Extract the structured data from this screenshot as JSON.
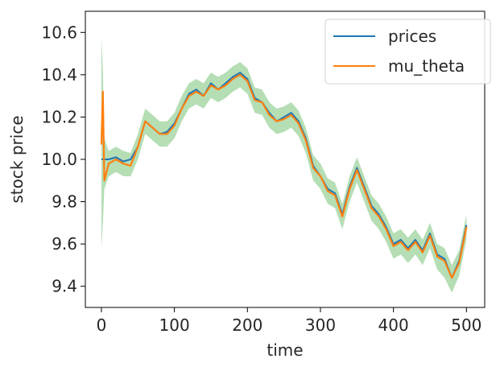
{
  "chart_data": {
    "type": "line",
    "title": "",
    "xlabel": "time",
    "ylabel": "stock price",
    "xlim": [
      -22,
      525
    ],
    "ylim": [
      9.3,
      10.7
    ],
    "xticks": [
      0,
      100,
      200,
      300,
      400,
      500
    ],
    "xtick_labels": [
      "0",
      "100",
      "200",
      "300",
      "400",
      "500"
    ],
    "yticks": [
      9.4,
      9.6,
      9.8,
      10.0,
      10.2,
      10.4,
      10.6
    ],
    "ytick_labels": [
      "9.4",
      "9.6",
      "9.8",
      "10.0",
      "10.2",
      "10.4",
      "10.6"
    ],
    "grid": false,
    "legend_position": "top-right",
    "series": [
      {
        "name": "prices",
        "color": "#1f77b4",
        "x": [
          0,
          10,
          20,
          30,
          40,
          50,
          60,
          70,
          80,
          90,
          100,
          110,
          120,
          130,
          140,
          150,
          160,
          170,
          180,
          190,
          200,
          210,
          220,
          230,
          240,
          250,
          260,
          270,
          280,
          290,
          300,
          310,
          320,
          330,
          340,
          350,
          360,
          370,
          380,
          390,
          400,
          410,
          420,
          430,
          440,
          450,
          460,
          470,
          480,
          490,
          500
        ],
        "y": [
          10.0,
          10.0,
          10.01,
          9.99,
          10.0,
          10.06,
          10.18,
          10.15,
          10.12,
          10.13,
          10.17,
          10.24,
          10.31,
          10.33,
          10.3,
          10.36,
          10.33,
          10.36,
          10.39,
          10.41,
          10.38,
          10.29,
          10.27,
          10.22,
          10.18,
          10.2,
          10.22,
          10.18,
          10.1,
          9.97,
          9.92,
          9.86,
          9.84,
          9.74,
          9.87,
          9.96,
          9.87,
          9.78,
          9.74,
          9.68,
          9.6,
          9.62,
          9.58,
          9.62,
          9.57,
          9.65,
          9.55,
          9.53,
          9.44,
          9.52,
          9.69
        ]
      },
      {
        "name": "mu_theta",
        "color": "#ff7f0e",
        "x": [
          0,
          2,
          4,
          10,
          20,
          30,
          40,
          50,
          60,
          70,
          80,
          90,
          100,
          110,
          120,
          130,
          140,
          150,
          160,
          170,
          180,
          190,
          200,
          210,
          220,
          230,
          240,
          250,
          260,
          270,
          280,
          290,
          300,
          310,
          320,
          330,
          340,
          350,
          360,
          370,
          380,
          390,
          400,
          410,
          420,
          430,
          440,
          450,
          460,
          470,
          480,
          490,
          500
        ],
        "y": [
          10.07,
          10.32,
          9.9,
          9.98,
          10.0,
          9.98,
          9.97,
          10.06,
          10.18,
          10.15,
          10.12,
          10.12,
          10.16,
          10.24,
          10.3,
          10.32,
          10.3,
          10.35,
          10.33,
          10.35,
          10.38,
          10.4,
          10.37,
          10.28,
          10.27,
          10.21,
          10.18,
          10.19,
          10.21,
          10.17,
          10.09,
          9.96,
          9.92,
          9.85,
          9.83,
          9.73,
          9.86,
          9.95,
          9.86,
          9.77,
          9.73,
          9.67,
          9.59,
          9.61,
          9.57,
          9.61,
          9.56,
          9.64,
          9.54,
          9.52,
          9.44,
          9.51,
          9.68
        ]
      }
    ],
    "band": {
      "color": "#2ca02c",
      "opacity": 0.35,
      "x": [
        0,
        2,
        4,
        10,
        20,
        30,
        40,
        50,
        60,
        70,
        80,
        90,
        100,
        110,
        120,
        130,
        140,
        150,
        160,
        170,
        180,
        190,
        200,
        210,
        220,
        230,
        240,
        250,
        260,
        270,
        280,
        290,
        300,
        310,
        320,
        330,
        340,
        350,
        360,
        370,
        380,
        390,
        400,
        410,
        420,
        430,
        440,
        450,
        460,
        470,
        480,
        490,
        500
      ],
      "lower": [
        9.58,
        9.7,
        9.86,
        9.92,
        9.94,
        9.92,
        9.92,
        10.0,
        10.12,
        10.09,
        10.06,
        10.06,
        10.1,
        10.18,
        10.24,
        10.26,
        10.24,
        10.29,
        10.27,
        10.29,
        10.32,
        10.34,
        10.31,
        10.22,
        10.21,
        10.15,
        10.12,
        10.13,
        10.15,
        10.11,
        10.03,
        9.9,
        9.86,
        9.79,
        9.77,
        9.67,
        9.8,
        9.89,
        9.8,
        9.71,
        9.67,
        9.61,
        9.53,
        9.55,
        9.51,
        9.55,
        9.5,
        9.58,
        9.48,
        9.44,
        9.37,
        9.45,
        9.62
      ],
      "upper": [
        10.58,
        10.42,
        10.1,
        10.04,
        10.06,
        10.04,
        10.03,
        10.12,
        10.24,
        10.21,
        10.18,
        10.18,
        10.22,
        10.3,
        10.36,
        10.38,
        10.36,
        10.41,
        10.39,
        10.41,
        10.44,
        10.46,
        10.43,
        10.34,
        10.33,
        10.27,
        10.24,
        10.25,
        10.27,
        10.23,
        10.15,
        10.02,
        9.98,
        9.91,
        9.89,
        9.79,
        9.92,
        10.01,
        9.92,
        9.83,
        9.79,
        9.73,
        9.65,
        9.67,
        9.63,
        9.67,
        9.62,
        9.7,
        9.6,
        9.58,
        9.5,
        9.57,
        9.74
      ]
    }
  }
}
